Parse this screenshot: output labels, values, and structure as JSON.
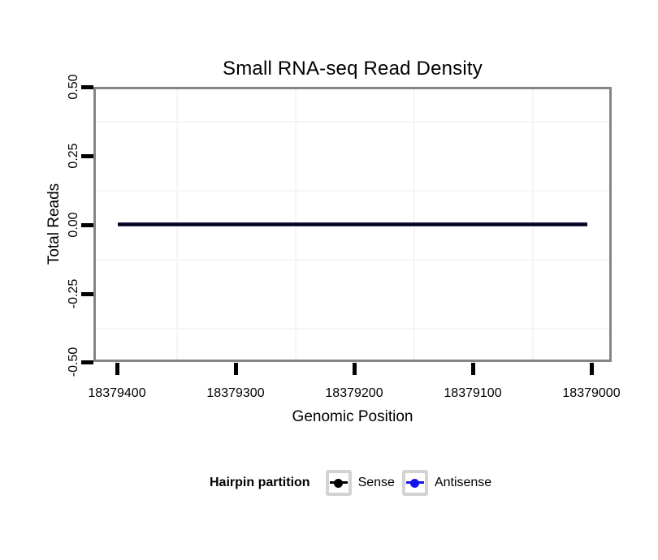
{
  "chart_data": {
    "type": "line",
    "title": "Small RNA-seq Read Density",
    "xlabel": "Genomic Position",
    "ylabel": "Total Reads",
    "x_tick_labels": [
      "18379400",
      "18379300",
      "18379200",
      "18379100",
      "18379000"
    ],
    "y_tick_labels": [
      "0.50",
      "0.25",
      "0.00",
      "-0.25",
      "-0.50"
    ],
    "ylim": [
      -0.5,
      0.5
    ],
    "x_axis_reversed": true,
    "grid": "minor-gridlines-only",
    "series": [
      {
        "name": "Sense",
        "color": "#000000",
        "y_constant": 0,
        "x_start": 18379400,
        "x_end": 18379005
      },
      {
        "name": "Antisense",
        "color": "#1414e8",
        "y_constant": 0,
        "x_start": 18379400,
        "x_end": 18379005
      }
    ],
    "legend": {
      "title": "Hairpin partition",
      "position": "bottom",
      "entries": [
        {
          "label": "Sense",
          "color": "#000000"
        },
        {
          "label": "Antisense",
          "color": "#1414e8"
        }
      ]
    },
    "colors": {
      "panel_border": "#858585",
      "minor_grid": "#f5f5f5",
      "axis_tick": "#000000",
      "line_core": "#000014",
      "line_edge": "#45459c",
      "legend_key_border": "#d3d3d3",
      "background": "#ffffff"
    }
  }
}
